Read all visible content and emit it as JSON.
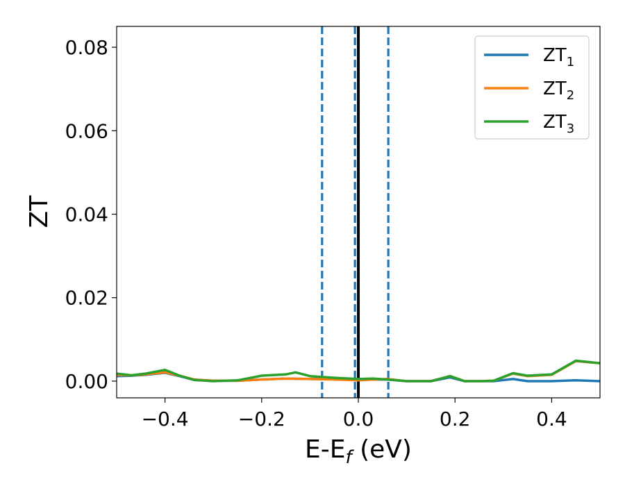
{
  "chart_data": {
    "type": "line",
    "xlabel": "E-E_f (eV)",
    "ylabel": "ZT",
    "xlim": [
      -0.5,
      0.5
    ],
    "ylim": [
      -0.004,
      0.085
    ],
    "xticks": [
      -0.4,
      -0.2,
      0.0,
      0.2,
      0.4
    ],
    "xtick_labels": [
      "−0.4",
      "−0.2",
      "0.0",
      "0.2",
      "0.4"
    ],
    "yticks": [
      0.0,
      0.02,
      0.04,
      0.06,
      0.08
    ],
    "ytick_labels": [
      "0.00",
      "0.02",
      "0.04",
      "0.06",
      "0.08"
    ],
    "grid": false,
    "legend_position": "top-right",
    "series": [
      {
        "name": "ZT_1",
        "label_base": "ZT",
        "label_sub": "1",
        "color": "#1f77b4",
        "x": [
          -0.5,
          -0.47,
          -0.44,
          -0.4,
          -0.37,
          -0.34,
          -0.3,
          -0.25,
          -0.2,
          -0.15,
          -0.1,
          -0.05,
          0.0,
          0.03,
          0.06,
          0.1,
          0.15,
          0.19,
          0.22,
          0.25,
          0.28,
          0.32,
          0.35,
          0.4,
          0.45,
          0.5
        ],
        "y": [
          0.0012,
          0.0013,
          0.0015,
          0.002,
          0.0012,
          0.0003,
          0.0001,
          0.0001,
          0.0004,
          0.0006,
          0.0005,
          0.0005,
          0.0003,
          0.0004,
          0.0004,
          0.0,
          0.0,
          0.0009,
          0.0,
          0.0,
          0.0,
          0.0005,
          0.0,
          0.0,
          0.0002,
          0.0
        ]
      },
      {
        "name": "ZT_2",
        "label_base": "ZT",
        "label_sub": "2",
        "color": "#ff7f0e",
        "x": [
          -0.5,
          -0.47,
          -0.44,
          -0.4,
          -0.37,
          -0.34,
          -0.3,
          -0.25,
          -0.2,
          -0.15,
          -0.1,
          -0.05,
          0.0,
          0.03,
          0.06,
          0.1,
          0.15,
          0.19,
          0.22,
          0.25,
          0.28,
          0.32,
          0.35,
          0.4,
          0.45,
          0.5
        ],
        "y": [
          0.0015,
          0.0014,
          0.0016,
          0.0021,
          0.0013,
          0.0004,
          0.0001,
          0.0001,
          0.0004,
          0.0006,
          0.0005,
          0.0004,
          0.0002,
          0.0004,
          0.0005,
          0.0,
          0.0,
          0.0012,
          0.0,
          0.0,
          0.0001,
          0.0018,
          0.0012,
          0.0015,
          0.0048,
          0.0043
        ]
      },
      {
        "name": "ZT_3",
        "label_base": "ZT",
        "label_sub": "3",
        "color": "#2ca02c",
        "x": [
          -0.5,
          -0.47,
          -0.44,
          -0.4,
          -0.37,
          -0.34,
          -0.3,
          -0.25,
          -0.2,
          -0.15,
          -0.13,
          -0.1,
          -0.05,
          0.0,
          0.03,
          0.06,
          0.1,
          0.15,
          0.19,
          0.22,
          0.25,
          0.28,
          0.32,
          0.35,
          0.4,
          0.45,
          0.5
        ],
        "y": [
          0.0018,
          0.0014,
          0.0018,
          0.0027,
          0.0013,
          0.0003,
          0.0,
          0.0002,
          0.0013,
          0.0016,
          0.0021,
          0.0012,
          0.0008,
          0.0005,
          0.0006,
          0.0004,
          0.0,
          0.0,
          0.0012,
          0.0,
          0.0,
          0.0001,
          0.0019,
          0.0013,
          0.0016,
          0.0049,
          0.0043
        ]
      }
    ],
    "reference_lines": [
      {
        "x": -0.075,
        "style": "dashed",
        "color": "#1f77b4"
      },
      {
        "x": -0.007,
        "style": "dashed",
        "color": "#1f77b4"
      },
      {
        "x": 0.0,
        "style": "solid",
        "color": "#000000"
      },
      {
        "x": 0.062,
        "style": "dashed",
        "color": "#1f77b4"
      }
    ]
  }
}
